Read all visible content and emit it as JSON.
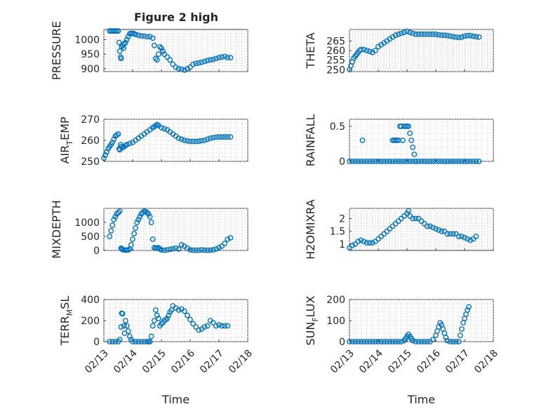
{
  "figure_title": "Figure 2 high",
  "series_color": "#0072bd",
  "chart_data": [
    {
      "type": "scatter",
      "title": "Figure 2 high",
      "ylabel": "PRESSURE",
      "ylim": [
        890,
        1035
      ],
      "yticks": [
        900,
        950,
        1000
      ],
      "xlim": [
        0,
        5
      ],
      "xtick_labels": [],
      "grid": true,
      "x": [
        0.2,
        0.25,
        0.3,
        0.35,
        0.4,
        0.45,
        0.5,
        0.53,
        0.55,
        0.58,
        0.6,
        0.62,
        0.65,
        0.68,
        0.7,
        0.75,
        0.8,
        0.85,
        0.9,
        0.95,
        1.0,
        1.05,
        1.1,
        1.2,
        1.3,
        1.4,
        1.5,
        1.6,
        1.7,
        1.75,
        1.8,
        1.85,
        1.9,
        1.95,
        2.0,
        2.05,
        2.1,
        2.2,
        2.3,
        2.4,
        2.5,
        2.6,
        2.7,
        2.8,
        2.9,
        3.0,
        3.1,
        3.2,
        3.3,
        3.4,
        3.5,
        3.6,
        3.7,
        3.8,
        3.9,
        4.0,
        4.1,
        4.2,
        4.3,
        4.4
      ],
      "y": [
        1030,
        1030,
        1030,
        1030,
        1030,
        1030,
        1030,
        990,
        960,
        940,
        935,
        975,
        980,
        970,
        985,
        990,
        1000,
        1010,
        1020,
        1022,
        1022,
        1020,
        1018,
        1015,
        1013,
        1012,
        1010,
        1010,
        1005,
        980,
        935,
        930,
        950,
        975,
        970,
        960,
        950,
        940,
        930,
        915,
        905,
        900,
        898,
        895,
        900,
        905,
        915,
        918,
        920,
        922,
        925,
        928,
        930,
        932,
        935,
        938,
        940,
        942,
        938,
        938
      ]
    },
    {
      "type": "scatter",
      "ylabel": "THETA",
      "ylim": [
        249,
        271
      ],
      "yticks": [
        250,
        255,
        260,
        265
      ],
      "xlim": [
        0,
        5
      ],
      "xtick_labels": [],
      "grid": true,
      "x": [
        0.0,
        0.05,
        0.1,
        0.15,
        0.2,
        0.25,
        0.3,
        0.35,
        0.4,
        0.5,
        0.6,
        0.7,
        0.8,
        0.9,
        1.0,
        1.1,
        1.2,
        1.3,
        1.4,
        1.5,
        1.6,
        1.7,
        1.8,
        1.9,
        2.0,
        2.1,
        2.2,
        2.3,
        2.4,
        2.5,
        2.6,
        2.7,
        2.8,
        2.9,
        3.0,
        3.1,
        3.2,
        3.3,
        3.4,
        3.5,
        3.6,
        3.7,
        3.8,
        3.9,
        4.0,
        4.1,
        4.2,
        4.3,
        4.4,
        4.5
      ],
      "y": [
        250,
        252,
        254,
        256,
        257,
        258,
        259,
        260,
        260.5,
        260.5,
        260,
        259.5,
        259,
        260,
        262,
        263,
        264,
        265,
        266,
        267,
        268,
        268.5,
        269,
        269.5,
        270,
        269.5,
        269,
        268.5,
        268.5,
        268.5,
        268.5,
        268.5,
        268.5,
        268.5,
        268.5,
        268.2,
        268,
        268,
        267.8,
        267.5,
        267.2,
        267,
        266.8,
        267,
        267.5,
        267.8,
        267.8,
        267.5,
        267.2,
        267
      ]
    },
    {
      "type": "scatter",
      "ylabel": "AIR_TEMP",
      "ylabel_main": "AIR",
      "ylabel_sub": "T",
      "ylabel_tail": "EMP",
      "ylim": [
        250,
        270
      ],
      "yticks": [
        250,
        260,
        270
      ],
      "xlim": [
        0,
        5
      ],
      "xtick_labels": [],
      "grid": true,
      "x": [
        0.0,
        0.05,
        0.1,
        0.15,
        0.2,
        0.25,
        0.3,
        0.35,
        0.4,
        0.45,
        0.5,
        0.53,
        0.55,
        0.58,
        0.6,
        0.65,
        0.7,
        0.75,
        0.8,
        0.9,
        1.0,
        1.1,
        1.2,
        1.3,
        1.4,
        1.5,
        1.6,
        1.7,
        1.75,
        1.8,
        1.85,
        1.9,
        2.0,
        2.1,
        2.2,
        2.3,
        2.4,
        2.5,
        2.6,
        2.7,
        2.8,
        2.9,
        3.0,
        3.1,
        3.2,
        3.3,
        3.4,
        3.5,
        3.6,
        3.7,
        3.8,
        3.9,
        4.0,
        4.1,
        4.2,
        4.3,
        4.4
      ],
      "y": [
        251.5,
        253,
        254.5,
        256,
        257,
        258,
        259,
        260.5,
        262,
        262.5,
        263,
        256,
        255.5,
        258,
        257,
        256.5,
        257,
        257.5,
        258,
        258.5,
        259,
        260,
        261,
        262,
        263,
        264,
        265,
        266,
        266.5,
        267,
        267.5,
        267,
        266,
        265.5,
        265,
        264,
        263,
        262,
        261,
        260.5,
        260,
        259.7,
        259.5,
        259.5,
        259.5,
        259.6,
        259.8,
        260,
        260.5,
        261,
        261.3,
        261.5,
        261.6,
        261.6,
        261.6,
        261.6,
        261.6
      ]
    },
    {
      "type": "scatter",
      "ylabel": "RAINFALL",
      "ylim": [
        0,
        0.6
      ],
      "yticks": [
        0,
        0.5
      ],
      "xlim": [
        0,
        5
      ],
      "xtick_labels": [],
      "grid": true,
      "x": [
        0.0,
        0.1,
        0.2,
        0.3,
        0.4,
        0.5,
        0.6,
        0.7,
        0.8,
        0.9,
        1.0,
        1.1,
        1.2,
        1.3,
        1.4,
        1.5,
        1.6,
        1.7,
        1.8,
        1.9,
        2.0,
        2.1,
        2.2,
        2.3,
        2.4,
        2.5,
        2.6,
        2.7,
        2.8,
        2.9,
        3.0,
        3.1,
        3.2,
        3.3,
        3.4,
        3.5,
        3.6,
        3.7,
        3.8,
        3.9,
        4.0,
        4.1,
        4.2,
        4.3,
        4.4,
        4.5,
        0.45,
        1.5,
        1.55,
        1.6,
        1.65,
        1.7,
        1.75,
        1.8,
        1.85,
        1.9,
        1.95,
        2.0,
        2.05,
        2.1,
        2.15,
        2.2,
        2.25,
        2.3
      ],
      "y": [
        0,
        0,
        0,
        0,
        0,
        0,
        0,
        0,
        0,
        0,
        0,
        0,
        0,
        0,
        0,
        0,
        0,
        0,
        0,
        0,
        0,
        0,
        0,
        0,
        0,
        0,
        0,
        0,
        0,
        0,
        0,
        0,
        0,
        0,
        0,
        0,
        0,
        0,
        0,
        0,
        0,
        0,
        0,
        0,
        0,
        0,
        0.3,
        0.3,
        0.3,
        0.3,
        0.3,
        0.3,
        0.5,
        0.5,
        0.3,
        0.5,
        0.5,
        0.5,
        0.5,
        0.4,
        0.3,
        0.2,
        0.1,
        0
      ]
    },
    {
      "type": "scatter",
      "ylabel": "MIXDEPTH",
      "ylim": [
        0,
        1500
      ],
      "yticks": [
        0,
        500,
        1000
      ],
      "xlim": [
        0,
        5
      ],
      "xtick_labels": [],
      "grid": true,
      "x": [
        0.2,
        0.25,
        0.3,
        0.35,
        0.4,
        0.45,
        0.5,
        0.55,
        0.6,
        0.62,
        0.65,
        0.7,
        0.75,
        0.8,
        0.85,
        0.9,
        0.95,
        1.0,
        1.05,
        1.1,
        1.15,
        1.2,
        1.25,
        1.3,
        1.35,
        1.4,
        1.45,
        1.5,
        1.55,
        1.6,
        1.65,
        1.7,
        1.75,
        1.8,
        1.85,
        1.9,
        1.95,
        2.0,
        2.1,
        2.2,
        2.3,
        2.4,
        2.5,
        2.6,
        2.7,
        2.8,
        2.9,
        3.0,
        3.1,
        3.2,
        3.3,
        3.4,
        3.5,
        3.6,
        3.7,
        3.8,
        3.9,
        4.0,
        4.1,
        4.2,
        4.3,
        4.4
      ],
      "y": [
        500,
        700,
        900,
        1100,
        1200,
        1300,
        1350,
        1400,
        80,
        50,
        30,
        20,
        10,
        15,
        20,
        50,
        200,
        400,
        600,
        800,
        1000,
        1100,
        1200,
        1300,
        1350,
        1400,
        1380,
        1350,
        1300,
        1200,
        1000,
        400,
        100,
        80,
        80,
        100,
        50,
        20,
        10,
        20,
        40,
        60,
        80,
        50,
        200,
        150,
        80,
        20,
        10,
        5,
        10,
        20,
        10,
        5,
        10,
        20,
        50,
        100,
        150,
        250,
        400,
        450
      ]
    },
    {
      "type": "scatter",
      "ylabel": "H2OMIXRA",
      "ylim": [
        0.75,
        2.4
      ],
      "yticks": [
        1,
        1.5,
        2
      ],
      "xlim": [
        0,
        5
      ],
      "xtick_labels": [],
      "grid": true,
      "x": [
        0.0,
        0.1,
        0.2,
        0.3,
        0.4,
        0.5,
        0.6,
        0.7,
        0.8,
        0.9,
        1.0,
        1.1,
        1.2,
        1.3,
        1.4,
        1.5,
        1.6,
        1.7,
        1.8,
        1.9,
        2.0,
        2.05,
        2.1,
        2.2,
        2.3,
        2.4,
        2.5,
        2.6,
        2.7,
        2.8,
        2.9,
        3.0,
        3.1,
        3.2,
        3.3,
        3.4,
        3.5,
        3.6,
        3.7,
        3.8,
        3.9,
        4.0,
        4.1,
        4.2,
        4.3,
        4.4
      ],
      "y": [
        0.85,
        0.95,
        1.0,
        1.1,
        1.15,
        1.1,
        1.05,
        1.05,
        1.05,
        1.1,
        1.2,
        1.3,
        1.4,
        1.5,
        1.6,
        1.7,
        1.8,
        1.9,
        2.0,
        2.1,
        2.2,
        2.3,
        2.1,
        2.0,
        2.0,
        2.0,
        1.9,
        1.8,
        1.7,
        1.7,
        1.65,
        1.6,
        1.55,
        1.5,
        1.5,
        1.4,
        1.4,
        1.4,
        1.4,
        1.3,
        1.3,
        1.25,
        1.2,
        1.15,
        1.2,
        1.3
      ]
    },
    {
      "type": "scatter",
      "ylabel": "TERR_MSL",
      "ylabel_main": "TERR",
      "ylabel_sub": "M",
      "ylabel_tail": "SL",
      "ylim": [
        0,
        400
      ],
      "yticks": [
        0,
        200,
        400
      ],
      "xlim": [
        0,
        5
      ],
      "xtick_labels": [
        "02/13",
        "02/14",
        "02/15",
        "02/16",
        "02/17",
        "02/18"
      ],
      "xlabel": "Time",
      "grid": true,
      "x": [
        0.2,
        0.3,
        0.4,
        0.5,
        0.55,
        0.6,
        0.62,
        0.65,
        0.7,
        0.72,
        0.75,
        0.8,
        0.85,
        0.9,
        0.95,
        1.0,
        1.1,
        1.2,
        1.3,
        1.4,
        1.5,
        1.55,
        1.6,
        1.65,
        1.7,
        1.75,
        1.8,
        1.85,
        1.9,
        1.95,
        2.0,
        2.05,
        2.1,
        2.15,
        2.2,
        2.25,
        2.3,
        2.35,
        2.4,
        2.5,
        2.6,
        2.7,
        2.8,
        2.9,
        3.0,
        3.1,
        3.2,
        3.3,
        3.4,
        3.5,
        3.6,
        3.7,
        3.8,
        3.9,
        4.0,
        4.1,
        4.2,
        4.3
      ],
      "y": [
        0,
        0,
        0,
        0,
        20,
        140,
        270,
        265,
        150,
        80,
        200,
        150,
        100,
        50,
        20,
        0,
        0,
        0,
        0,
        0,
        0,
        0,
        0,
        50,
        150,
        200,
        300,
        250,
        220,
        150,
        170,
        180,
        200,
        210,
        220,
        250,
        280,
        300,
        340,
        320,
        300,
        310,
        290,
        250,
        210,
        170,
        140,
        110,
        120,
        140,
        150,
        200,
        180,
        150,
        160,
        150,
        150,
        150
      ]
    },
    {
      "type": "scatter",
      "ylabel": "SUN_FLUX",
      "ylabel_main": "SUN",
      "ylabel_sub": "F",
      "ylabel_tail": "LUX",
      "ylim": [
        0,
        200
      ],
      "yticks": [
        0,
        100,
        200
      ],
      "xlim": [
        0,
        5
      ],
      "xtick_labels": [
        "02/13",
        "02/14",
        "02/15",
        "02/16",
        "02/17",
        "02/18"
      ],
      "xlabel": "Time",
      "grid": true,
      "x": [
        0.0,
        0.1,
        0.2,
        0.3,
        0.4,
        0.5,
        0.6,
        0.7,
        0.8,
        0.9,
        1.0,
        1.1,
        1.2,
        1.3,
        1.4,
        1.5,
        1.6,
        1.7,
        1.8,
        1.9,
        1.95,
        2.0,
        2.05,
        2.1,
        2.15,
        2.2,
        2.3,
        2.4,
        2.5,
        2.6,
        2.7,
        2.8,
        2.9,
        3.0,
        3.05,
        3.1,
        3.15,
        3.2,
        3.25,
        3.3,
        3.35,
        3.4,
        3.5,
        3.6,
        3.7,
        3.8,
        3.85,
        3.9,
        3.95,
        4.0,
        4.05,
        4.1,
        4.15
      ],
      "y": [
        0,
        0,
        0,
        0,
        0,
        0,
        0,
        0,
        0,
        0,
        0,
        0,
        0,
        0,
        0,
        0,
        0,
        0,
        0,
        5,
        15,
        25,
        35,
        25,
        15,
        5,
        0,
        0,
        0,
        0,
        0,
        0,
        10,
        30,
        50,
        70,
        90,
        80,
        60,
        40,
        20,
        5,
        0,
        0,
        0,
        0,
        30,
        60,
        90,
        110,
        130,
        150,
        165
      ]
    }
  ]
}
